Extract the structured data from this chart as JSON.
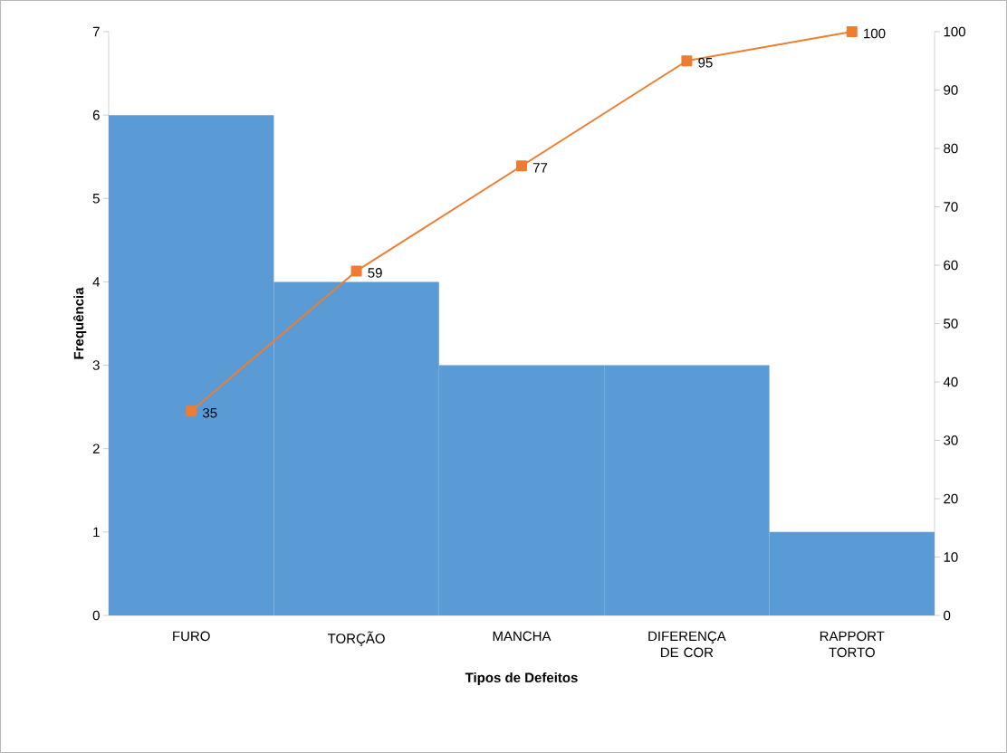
{
  "chart_data": {
    "type": "bar",
    "xlabel": "Tipos de Defeitos",
    "ylabel": "Frequência",
    "categories": [
      "FURO",
      "TORÇÃO",
      "MANCHA",
      "DIFERENÇA DE COR",
      "RAPPORT TORTO"
    ],
    "series": [
      {
        "color": "#5b9bd5",
        "values": [
          6,
          4,
          3,
          3,
          1
        ]
      },
      {
        "type": "line",
        "axis": "y2",
        "color": "#ed7d31",
        "values": [
          35,
          59,
          77,
          95,
          100
        ],
        "value_labels": [
          "35",
          "59",
          "77",
          "95",
          "100"
        ]
      }
    ],
    "ylim": [
      0,
      7
    ],
    "yticks": [
      0,
      1,
      2,
      3,
      4,
      5,
      6,
      7
    ],
    "y2lim": [
      0,
      100
    ],
    "y2ticks": [
      0,
      10,
      20,
      30,
      40,
      50,
      60,
      70,
      80,
      90,
      100
    ],
    "marker": "square"
  }
}
